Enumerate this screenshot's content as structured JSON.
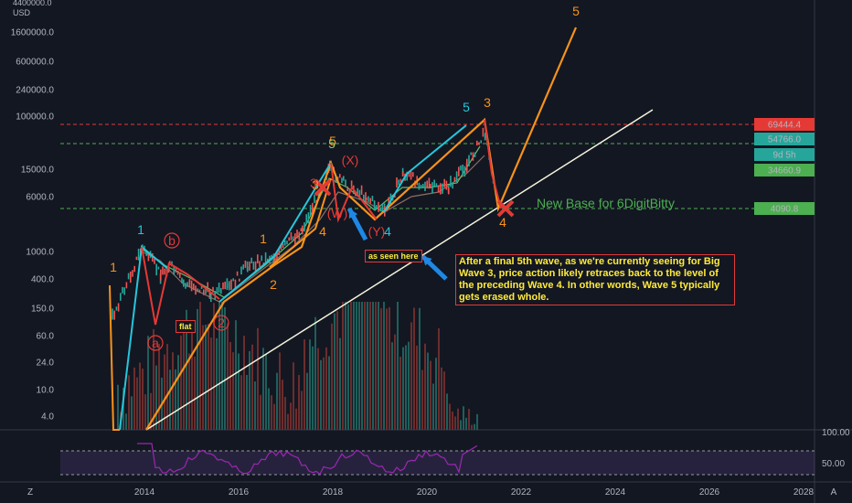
{
  "chart_data": {
    "type": "line",
    "title": "",
    "xlabel": "",
    "ylabel": "",
    "scale": "log",
    "currency": "USD",
    "y_top_label": "4400000.0",
    "yticks": [
      "1600000.0",
      "600000.0",
      "240000.0",
      "100000.0",
      "15000.0",
      "6000.0",
      "1000.0",
      "400.0",
      "150.0",
      "60.0",
      "24.0",
      "10.0",
      "4.0"
    ],
    "xticks": [
      "2014",
      "2016",
      "2018",
      "2020",
      "2022",
      "2024",
      "2026",
      "2028"
    ],
    "indicator_ticks": [
      "100.00",
      "50.00"
    ],
    "price_labels": [
      {
        "text": "69444.4",
        "color": "#e53935"
      },
      {
        "text": "54766.0",
        "color": "#26a69a"
      },
      {
        "text": "9d 5h",
        "color": "#26a69a"
      },
      {
        "text": "34660.9",
        "color": "#4caf50"
      },
      {
        "text": "4090.8",
        "color": "#4caf50"
      }
    ],
    "wave_labels": [
      {
        "text": "1",
        "color": "#f7931a"
      },
      {
        "text": "1",
        "color": "#26c6da"
      },
      {
        "text": "b",
        "color": "#e53935"
      },
      {
        "text": "a",
        "color": "#e53935"
      },
      {
        "text": "2",
        "color": "#e53935"
      },
      {
        "text": "1",
        "color": "#f7931a"
      },
      {
        "text": "2",
        "color": "#f7931a"
      },
      {
        "text": "3",
        "color": "#f7931a"
      },
      {
        "text": "3",
        "color": "#e53935"
      },
      {
        "text": "4",
        "color": "#f7931a"
      },
      {
        "text": "5",
        "color": "#f7931a"
      },
      {
        "text": "5",
        "color": "#9ccc65"
      },
      {
        "text": "(X)",
        "color": "#e53935"
      },
      {
        "text": "(W)",
        "color": "#e53935"
      },
      {
        "text": "(Y)",
        "color": "#e53935"
      },
      {
        "text": "4",
        "color": "#26c6da"
      },
      {
        "text": "5",
        "color": "#26c6da"
      },
      {
        "text": "3",
        "color": "#f7931a"
      },
      {
        "text": "4",
        "color": "#f7931a"
      },
      {
        "text": "5",
        "color": "#f7931a"
      }
    ],
    "annotations": {
      "flat": "flat",
      "as_seen_here": "as seen here",
      "new_base": "New Base for 6DigitBitty",
      "note": "After a final 5th wave, as we're currently seeing for Big Wave 3, price action likely retraces back to the level of the preceding Wave 4. In other words, Wave 5 typically gets erased whole."
    },
    "series": [
      {
        "values": [
          3,
          300,
          2,
          1000,
          80,
          600,
          200,
          180,
          250,
          600,
          350,
          1200,
          8000,
          19000,
          6000,
          8000,
          3500,
          5000,
          13000,
          7000,
          10000,
          9000,
          12000,
          30000,
          64000,
          38000,
          4090,
          2000000
        ]
      }
    ]
  },
  "axis_letters": {
    "left": "Z",
    "right": "A"
  },
  "colors": {
    "background": "#131722",
    "orange": "#f7931a",
    "teal": "#26c6da",
    "red": "#e53935",
    "green_dashed": "#4caf50",
    "red_dashed": "#e53935",
    "trendline": "#f5f5dc",
    "rsi": "#9c27b0"
  }
}
